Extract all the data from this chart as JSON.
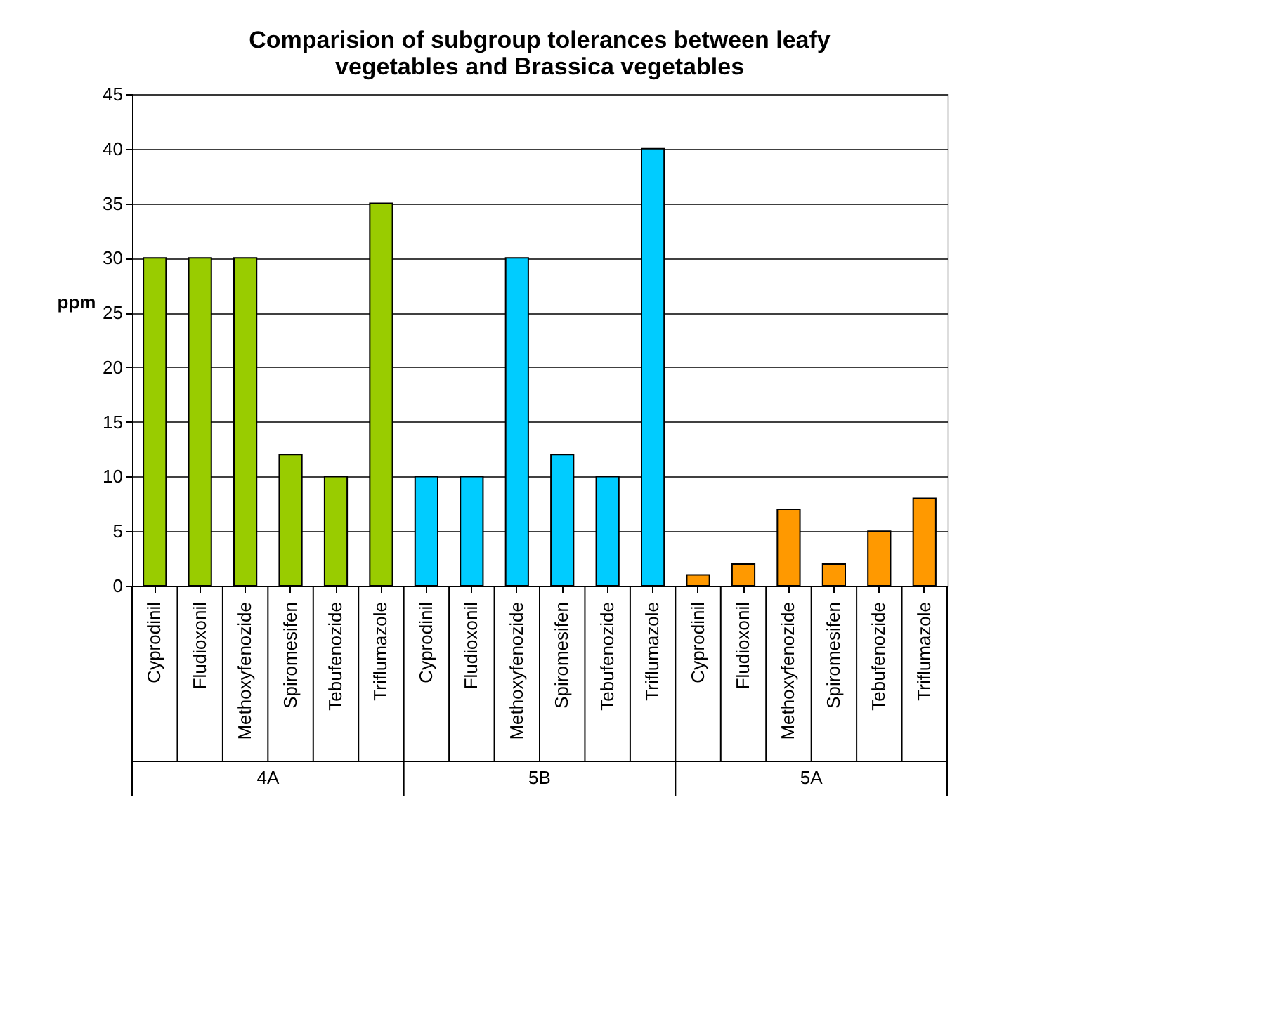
{
  "chart_data": {
    "type": "bar",
    "title": [
      "Comparision of subgroup tolerances between leafy",
      "vegetables and Brassica vegetables"
    ],
    "ylabel": "ppm",
    "categories": [
      "Cyprodinil",
      "Fludioxonil",
      "Methoxyfenozide",
      "Spiromesifen",
      "Tebufenozide",
      "Triflumazole",
      "Cyprodinil",
      "Fludioxonil",
      "Methoxyfenozide",
      "Spiromesifen",
      "Tebufenozide",
      "Triflumazole",
      "Cyprodinil",
      "Fludioxonil",
      "Methoxyfenozide",
      "Spiromesifen",
      "Tebufenozide",
      "Triflumazole"
    ],
    "values": [
      30,
      30,
      30,
      12,
      10,
      35,
      10,
      10,
      30,
      12,
      10,
      40,
      1,
      2,
      7,
      2,
      5,
      8
    ],
    "colors": [
      "#99cc00",
      "#99cc00",
      "#99cc00",
      "#99cc00",
      "#99cc00",
      "#99cc00",
      "#00ccff",
      "#00ccff",
      "#00ccff",
      "#00ccff",
      "#00ccff",
      "#00ccff",
      "#ff9900",
      "#ff9900",
      "#ff9900",
      "#ff9900",
      "#ff9900",
      "#ff9900"
    ],
    "annotations": [
      "4A",
      "5B",
      "5A"
    ],
    "ylim": [
      0,
      45
    ],
    "yticks": [
      0,
      5,
      10,
      15,
      20,
      25,
      30,
      35,
      40,
      45
    ],
    "grid": "y"
  }
}
